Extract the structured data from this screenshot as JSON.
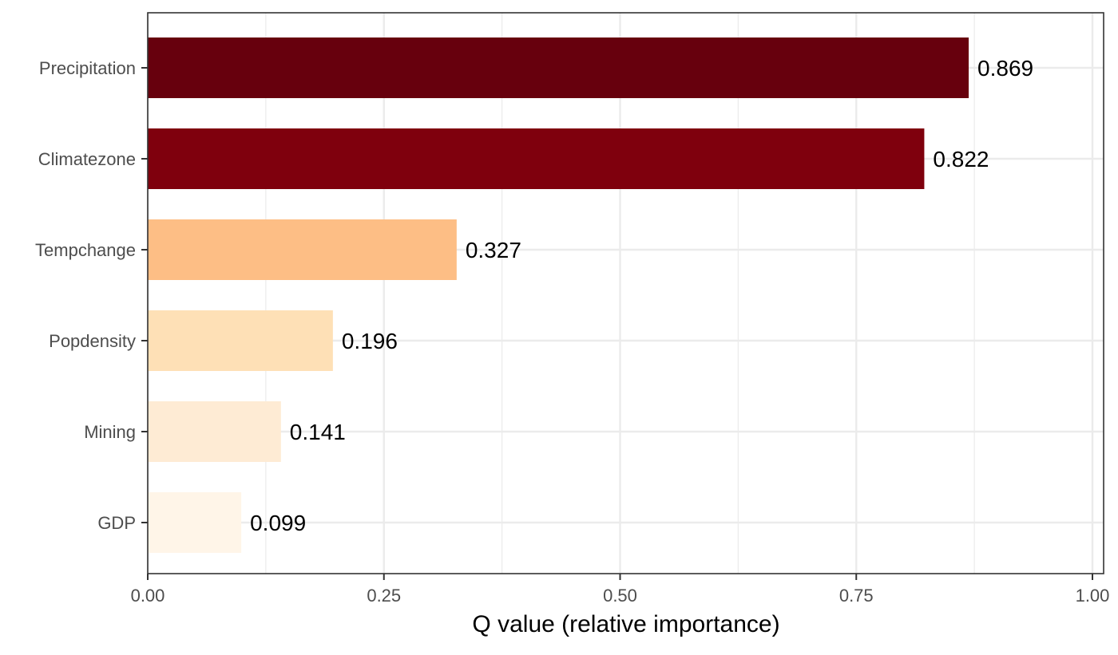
{
  "chart_data": {
    "type": "bar",
    "orientation": "horizontal",
    "categories": [
      "Precipitation",
      "Climatezone",
      "Tempchange",
      "Popdensity",
      "Mining",
      "GDP"
    ],
    "values": [
      0.869,
      0.822,
      0.327,
      0.196,
      0.141,
      0.099
    ],
    "data_labels": [
      "0.869",
      "0.822",
      "0.327",
      "0.196",
      "0.141",
      "0.099"
    ],
    "colors": [
      "#67000d",
      "#7f000d",
      "#fdbe85",
      "#fee0b6",
      "#feebd4",
      "#fff5e8"
    ],
    "title": "",
    "xlabel": "Q value (relative importance)",
    "ylabel": "",
    "xlim": [
      0,
      1
    ],
    "x_ticks": [
      0,
      0.25,
      0.5,
      0.75,
      1
    ],
    "x_tick_labels": [
      "0.00",
      "0.25",
      "0.50",
      "0.75",
      "1.00"
    ],
    "grid": true,
    "panel_border": true,
    "legend": "none",
    "background": "#ffffff",
    "grid_color": "#ebebeb",
    "axis_color": "#333333"
  }
}
